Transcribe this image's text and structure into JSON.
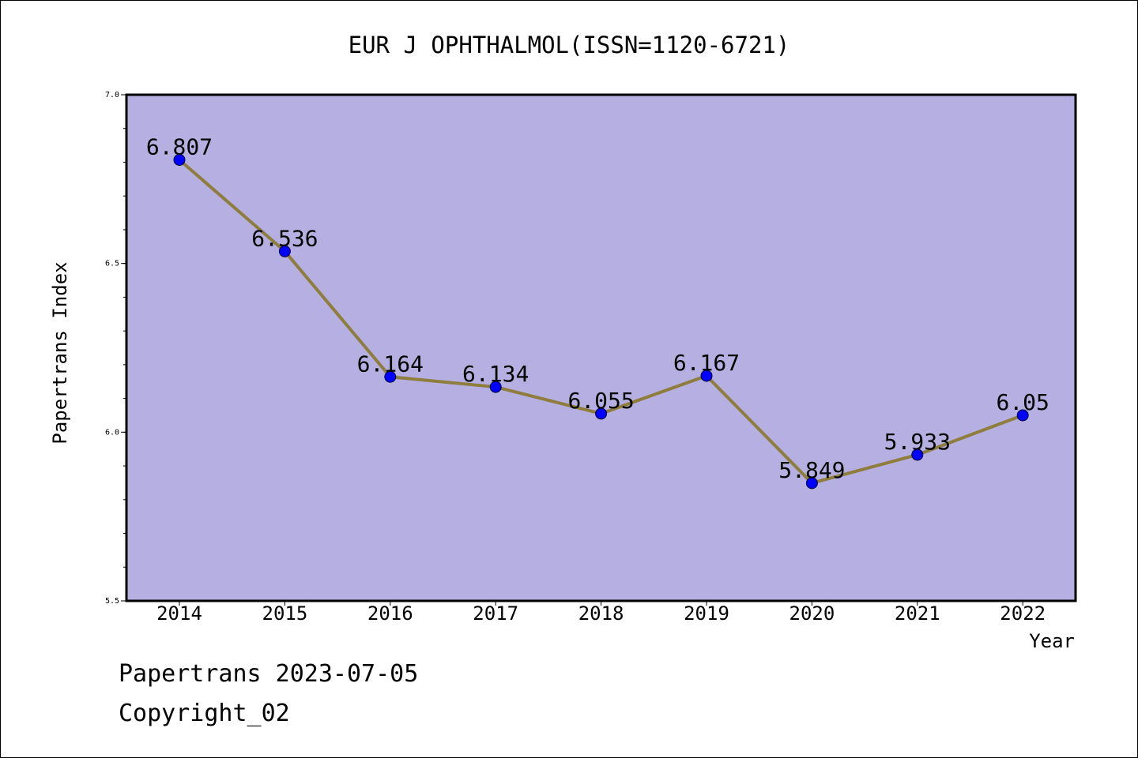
{
  "chart_data": {
    "type": "line",
    "title": "EUR J OPHTHALMOL(ISSN=1120-6721)",
    "xlabel": "Year",
    "ylabel": "Papertrans Index",
    "categories": [
      "2014",
      "2015",
      "2016",
      "2017",
      "2018",
      "2019",
      "2020",
      "2021",
      "2022"
    ],
    "values": [
      6.807,
      6.536,
      6.164,
      6.134,
      6.055,
      6.167,
      5.849,
      5.933,
      6.05
    ],
    "data_labels": [
      "6.807",
      "6.536",
      "6.164",
      "6.134",
      "6.055",
      "6.167",
      "5.849",
      "5.933",
      "6.05"
    ],
    "ylim": [
      5.5,
      7.0
    ],
    "yticks": [
      "5.5",
      "6.0",
      "6.5",
      "7.0"
    ],
    "grid": false,
    "colors": {
      "plot_background": "#b5afe2",
      "line": "#8e7d3c",
      "marker": "#0000ff"
    }
  },
  "footer": {
    "source": "Papertrans 2023-07-05",
    "copyright": "Copyright_02"
  }
}
